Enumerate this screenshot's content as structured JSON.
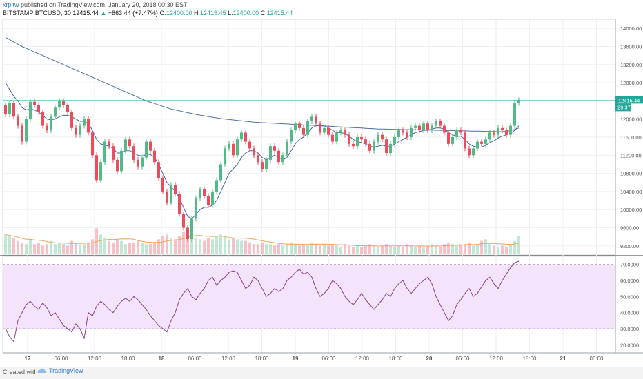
{
  "header": {
    "author": "xrpltw",
    "published_text": "published on TradingView.com, January 20, 2018 00:30 EST",
    "symbol": "BITSTAMP:BTCUSD, 30",
    "last_price": "12415.44",
    "change_arrow": "▲",
    "change": "+863.44 (+7.47%)",
    "ohlc": [
      {
        "label": "O:",
        "value": "12400.00"
      },
      {
        "label": "H:",
        "value": "12415.45"
      },
      {
        "label": "L:",
        "value": "12400.00"
      },
      {
        "label": "C:",
        "value": "12415.44"
      }
    ]
  },
  "colors": {
    "up": "#53b987",
    "down": "#eb4d5c",
    "ma_long": "#4f6fa8",
    "ma_short": "#3e64a5",
    "volume_ma": "#f0a45d",
    "rsi_line": "#8d3d8d",
    "rsi_band": "#f3e3fb",
    "price_line": "#26a69a"
  },
  "footer": {
    "created_with": "Created with",
    "brand": "TradingView"
  },
  "chart_data": {
    "type": "candlestick",
    "price_axis": {
      "ticks": [
        "14000.00",
        "13600.00",
        "13200.00",
        "12800.00",
        "12400.00",
        "12000.00",
        "11600.00",
        "11200.00",
        "10800.00",
        "10400.00",
        "10000.00",
        "9600.00",
        "9200.00"
      ],
      "tick_values": [
        14000,
        13600,
        13200,
        12800,
        12400,
        12000,
        11600,
        11200,
        10800,
        10400,
        10000,
        9600,
        9200
      ],
      "range": [
        9000,
        14200
      ]
    },
    "last_price_label": "12415.44",
    "countdown_label": "29:37",
    "rsi_axis": {
      "ticks": [
        "70.0000",
        "60.0000",
        "50.0000",
        "40.0000",
        "30.0000",
        "20.0000"
      ],
      "tick_values": [
        70,
        60,
        50,
        40,
        30,
        20
      ],
      "range": [
        15,
        75
      ],
      "band": [
        30,
        70
      ]
    },
    "x_axis": {
      "labels": [
        "17",
        "06:00",
        "12:00",
        "18:00",
        "18",
        "06:00",
        "12:00",
        "18:00",
        "19",
        "06:00",
        "12:00",
        "18:00",
        "20",
        "06:00",
        "12:00",
        "18:00",
        "21",
        "06:00"
      ]
    },
    "closes": [
      12100,
      12350,
      12050,
      11850,
      11500,
      12000,
      12380,
      12300,
      12150,
      11850,
      11750,
      12050,
      12250,
      12400,
      12300,
      12150,
      11800,
      11650,
      11850,
      12000,
      11700,
      11200,
      10650,
      11050,
      11500,
      11400,
      11100,
      10850,
      11300,
      11550,
      11400,
      11100,
      10950,
      11150,
      11500,
      11300,
      11050,
      10700,
      10400,
      10150,
      10550,
      10350,
      9900,
      9600,
      9350,
      9800,
      10250,
      10450,
      10300,
      10100,
      10400,
      10650,
      11000,
      11350,
      11450,
      11200,
      11550,
      11700,
      11500,
      11350,
      11200,
      11050,
      10900,
      11100,
      11400,
      11300,
      11050,
      11200,
      11500,
      11750,
      11900,
      11800,
      11650,
      11950,
      12050,
      11900,
      11700,
      11800,
      11650,
      11500,
      11700,
      11750,
      11650,
      11450,
      11400,
      11600,
      11550,
      11450,
      11300,
      11500,
      11650,
      11550,
      11250,
      11450,
      11600,
      11750,
      11700,
      11600,
      11800,
      11850,
      11750,
      11900,
      11750,
      11850,
      11950,
      11850,
      11700,
      11450,
      11600,
      11750,
      11700,
      11350,
      11200,
      11350,
      11500,
      11450,
      11550,
      11700,
      11650,
      11800,
      11750,
      11650,
      11850,
      12350,
      12415.44
    ],
    "ma_long": [
      13800,
      13750,
      13700,
      13650,
      13600,
      13560,
      13520,
      13480,
      13440,
      13400,
      13360,
      13320,
      13280,
      13240,
      13200,
      13160,
      13120,
      13080,
      13040,
      13000,
      12960,
      12920,
      12880,
      12840,
      12800,
      12760,
      12720,
      12680,
      12640,
      12600,
      12560,
      12520,
      12480,
      12440,
      12400,
      12370,
      12340,
      12310,
      12280,
      12250,
      12220,
      12200,
      12180,
      12160,
      12140,
      12120,
      12100,
      12085,
      12070,
      12055,
      12040,
      12025,
      12010,
      12000,
      11990,
      11980,
      11970,
      11960,
      11950,
      11940,
      11930,
      11925,
      11920,
      11915,
      11910,
      11905,
      11900,
      11895,
      11890,
      11885,
      11880,
      11875,
      11870,
      11865,
      11860,
      11855,
      11850,
      11845,
      11840,
      11835,
      11830,
      11825,
      11820,
      11815,
      11810,
      11805,
      11800,
      11795,
      11790,
      11785,
      11780,
      11778,
      11776,
      11774,
      11772,
      11770,
      11768,
      11766,
      11764,
      11762,
      11760,
      11758,
      11756,
      11754,
      11752,
      11750,
      11748,
      11746,
      11744,
      11742,
      11740,
      11738,
      11736,
      11734,
      11732,
      11730,
      11728,
      11726,
      11724,
      11722,
      11720,
      11730,
      11745,
      11770,
      11800
    ],
    "ma_short": [
      12800,
      12650,
      12500,
      12400,
      12250,
      12200,
      12220,
      12200,
      12150,
      12080,
      12000,
      11980,
      12000,
      12050,
      12080,
      12080,
      12050,
      12000,
      11950,
      11950,
      11900,
      11750,
      11550,
      11450,
      11420,
      11400,
      11350,
      11250,
      11250,
      11300,
      11300,
      11250,
      11200,
      11180,
      11220,
      11220,
      11150,
      11000,
      10800,
      10600,
      10500,
      10400,
      10250,
      10050,
      9850,
      9800,
      9900,
      10000,
      10050,
      10050,
      10100,
      10200,
      10400,
      10600,
      10800,
      10900,
      11000,
      11150,
      11250,
      11300,
      11300,
      11250,
      11150,
      11100,
      11150,
      11200,
      11150,
      11100,
      11150,
      11300,
      11450,
      11550,
      11600,
      11700,
      11800,
      11850,
      11850,
      11850,
      11800,
      11750,
      11700,
      11700,
      11680,
      11620,
      11550,
      11500,
      11480,
      11450,
      11400,
      11380,
      11400,
      11420,
      11400,
      11400,
      11450,
      11500,
      11550,
      11600,
      11650,
      11700,
      11720,
      11750,
      11750,
      11780,
      11800,
      11800,
      11780,
      11700,
      11650,
      11620,
      11620,
      11550,
      11450,
      11400,
      11380,
      11380,
      11420,
      11480,
      11520,
      11580,
      11620,
      11650,
      11680,
      11750,
      11850
    ],
    "volumes": [
      0.6,
      0.55,
      0.5,
      0.4,
      0.35,
      0.3,
      0.45,
      0.3,
      0.35,
      0.25,
      0.3,
      0.4,
      0.3,
      0.35,
      0.3,
      0.25,
      0.4,
      0.35,
      0.3,
      0.3,
      0.35,
      0.45,
      0.8,
      0.6,
      0.5,
      0.4,
      0.35,
      0.45,
      0.4,
      0.3,
      0.35,
      0.35,
      0.4,
      0.35,
      0.3,
      0.3,
      0.35,
      0.45,
      0.55,
      0.6,
      0.5,
      0.45,
      0.55,
      0.7,
      0.8,
      0.6,
      0.5,
      0.45,
      0.4,
      0.5,
      0.45,
      0.55,
      0.6,
      0.55,
      0.45,
      0.5,
      0.45,
      0.4,
      0.4,
      0.35,
      0.3,
      0.3,
      0.35,
      0.3,
      0.3,
      0.25,
      0.3,
      0.25,
      0.3,
      0.35,
      0.3,
      0.25,
      0.3,
      0.3,
      0.35,
      0.3,
      0.25,
      0.3,
      0.25,
      0.3,
      0.25,
      0.2,
      0.3,
      0.25,
      0.2,
      0.25,
      0.2,
      0.25,
      0.3,
      0.25,
      0.2,
      0.25,
      0.3,
      0.25,
      0.2,
      0.25,
      0.2,
      0.3,
      0.25,
      0.2,
      0.25,
      0.2,
      0.25,
      0.3,
      0.25,
      0.2,
      0.3,
      0.35,
      0.3,
      0.25,
      0.3,
      0.3,
      0.35,
      0.25,
      0.3,
      0.4,
      0.45,
      0.3,
      0.25,
      0.2,
      0.25,
      0.2,
      0.3,
      0.4,
      0.55
    ],
    "rsi": [
      30,
      25,
      22,
      35,
      40,
      45,
      47,
      44,
      42,
      46,
      43,
      38,
      40,
      36,
      32,
      30,
      28,
      33,
      30,
      24,
      40,
      38,
      44,
      47,
      45,
      42,
      40,
      44,
      47,
      49,
      47,
      50,
      48,
      45,
      42,
      38,
      35,
      32,
      30,
      28,
      35,
      40,
      48,
      52,
      55,
      50,
      48,
      52,
      55,
      60,
      62,
      57,
      60,
      62,
      65,
      66,
      65,
      60,
      55,
      57,
      62,
      60,
      55,
      50,
      52,
      55,
      53,
      55,
      60,
      62,
      65,
      67,
      64,
      65,
      62,
      55,
      50,
      52,
      55,
      60,
      58,
      55,
      50,
      47,
      45,
      48,
      52,
      48,
      45,
      42,
      45,
      48,
      52,
      50,
      55,
      58,
      60,
      55,
      52,
      55,
      58,
      60,
      62,
      58,
      50,
      45,
      40,
      35,
      38,
      45,
      48,
      52,
      55,
      50,
      52,
      56,
      60,
      62,
      58,
      55,
      60,
      64,
      68,
      71,
      72
    ]
  }
}
